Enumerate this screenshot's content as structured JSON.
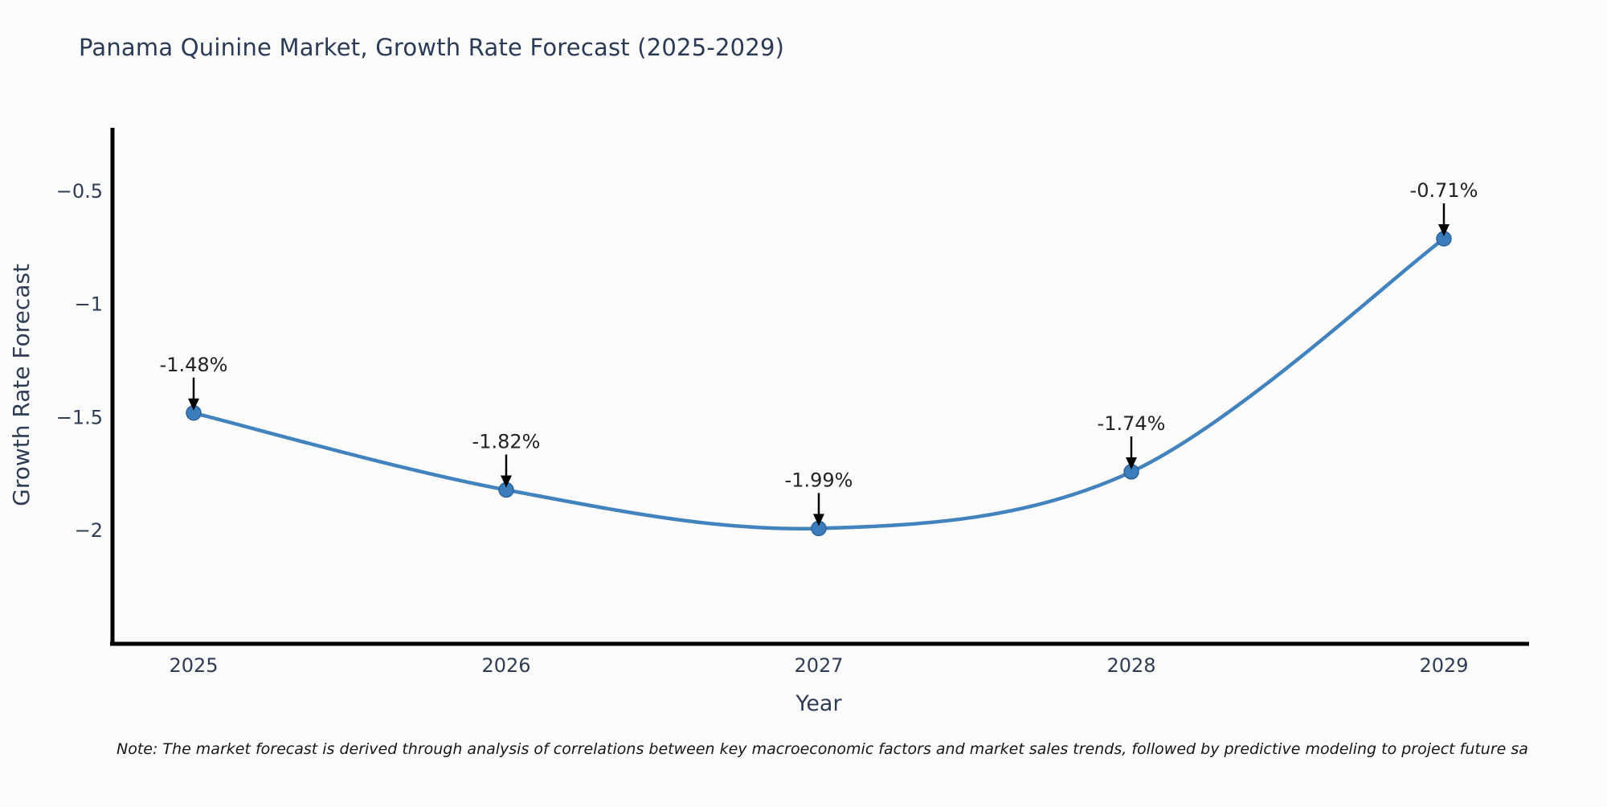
{
  "title": "Panama Quinine Market, Growth Rate Forecast (2025-2029)",
  "note": "Note: The market forecast is derived through analysis of correlations between key macroeconomic factors and market sales trends, followed by predictive modeling to project future sa",
  "chart_data": {
    "type": "line",
    "title": "Panama Quinine Market, Growth Rate Forecast (2025-2029)",
    "xlabel": "Year",
    "ylabel": "Growth Rate Forecast",
    "categories": [
      "2025",
      "2026",
      "2027",
      "2028",
      "2029"
    ],
    "values": [
      -1.48,
      -1.82,
      -1.99,
      -1.74,
      -0.71
    ],
    "data_labels": [
      "-1.48%",
      "-1.82%",
      "-1.99%",
      "-1.74%",
      "-0.71%"
    ],
    "y_ticks": [
      -0.5,
      -1,
      -1.5,
      -2
    ],
    "y_tick_labels": [
      "−0.5",
      "−1",
      "−1.5",
      "−2"
    ],
    "ylim": [
      -2.5,
      -0.22
    ],
    "grid": false,
    "legend_position": "none",
    "line_color": "#4282bd",
    "marker_color": "#3c7cbc",
    "marker_edge_color": "#2d6399",
    "spine_color": "#000000",
    "annotation_arrow_color": "#000000",
    "text_color": "#2e3d54"
  }
}
